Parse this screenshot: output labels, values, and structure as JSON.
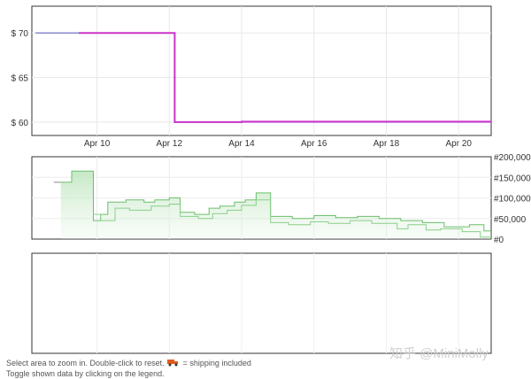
{
  "chart_data": [
    {
      "type": "line",
      "y_tick_labels": [
        "$ 70",
        "$ 65",
        "$ 60"
      ],
      "x_tick_labels": [
        "Apr 10",
        "Apr 12",
        "Apr 14",
        "Apr 16",
        "Apr 18",
        "Apr 20"
      ],
      "xlim": [
        8.2,
        20.9
      ],
      "ylim": [
        58.5,
        73.0
      ],
      "grid": true,
      "colors": {
        "amazon": "#8888cc",
        "new": "#cc33cc"
      },
      "series": [
        {
          "points": [
            [
              8.3,
              70
            ],
            [
              12.15,
              70
            ],
            [
              12.15,
              60
            ],
            [
              20.9,
              60
            ]
          ]
        },
        {
          "points": [
            [
              9.5,
              70
            ],
            [
              12.15,
              70
            ],
            [
              12.15,
              60
            ],
            [
              14.0,
              60
            ],
            [
              14.0,
              60.05
            ],
            [
              20.9,
              60.05
            ]
          ]
        }
      ]
    },
    {
      "type": "area",
      "y_tick_labels": [
        "#200,000",
        "#150,000",
        "#100,000",
        "#50,000",
        "#0"
      ],
      "ylim": [
        0,
        200000
      ],
      "xlim": [
        8.2,
        20.9
      ],
      "grid": true,
      "colors": {
        "line": "#6cbf6c",
        "fill": "#dff2df"
      },
      "series": [
        {
          "points": [
            [
              9.0,
              138000
            ],
            [
              9.3,
              138000
            ],
            [
              9.3,
              165000
            ],
            [
              9.9,
              165000
            ],
            [
              9.9,
              45000
            ],
            [
              10.1,
              45000
            ],
            [
              10.1,
              60000
            ],
            [
              10.3,
              60000
            ],
            [
              10.3,
              90000
            ],
            [
              10.8,
              90000
            ],
            [
              10.8,
              95000
            ],
            [
              11.3,
              95000
            ],
            [
              11.3,
              90000
            ],
            [
              11.6,
              90000
            ],
            [
              11.6,
              95000
            ],
            [
              12.0,
              95000
            ],
            [
              12.0,
              100000
            ],
            [
              12.3,
              100000
            ],
            [
              12.3,
              65000
            ],
            [
              12.7,
              65000
            ],
            [
              12.7,
              60000
            ],
            [
              13.1,
              60000
            ],
            [
              13.1,
              75000
            ],
            [
              13.4,
              75000
            ],
            [
              13.4,
              80000
            ],
            [
              13.8,
              80000
            ],
            [
              13.8,
              90000
            ],
            [
              14.1,
              90000
            ],
            [
              14.1,
              95000
            ],
            [
              14.4,
              95000
            ],
            [
              14.4,
              112000
            ],
            [
              14.8,
              112000
            ],
            [
              14.8,
              55000
            ],
            [
              15.4,
              55000
            ],
            [
              15.4,
              50000
            ],
            [
              16.0,
              50000
            ],
            [
              16.0,
              57000
            ],
            [
              16.6,
              57000
            ],
            [
              16.6,
              52000
            ],
            [
              17.2,
              52000
            ],
            [
              17.2,
              55000
            ],
            [
              17.8,
              55000
            ],
            [
              17.8,
              50000
            ],
            [
              18.4,
              50000
            ],
            [
              18.4,
              45000
            ],
            [
              19.0,
              45000
            ],
            [
              19.0,
              40000
            ],
            [
              19.6,
              40000
            ],
            [
              19.6,
              30000
            ],
            [
              20.3,
              30000
            ],
            [
              20.3,
              35000
            ],
            [
              20.7,
              35000
            ],
            [
              20.7,
              20000
            ],
            [
              20.9,
              20000
            ]
          ]
        },
        {
          "points": [
            [
              9.9,
              60000
            ],
            [
              10.1,
              60000
            ],
            [
              10.1,
              45000
            ],
            [
              10.5,
              45000
            ],
            [
              10.5,
              75000
            ],
            [
              10.9,
              75000
            ],
            [
              10.9,
              70000
            ],
            [
              11.5,
              70000
            ],
            [
              11.5,
              80000
            ],
            [
              12.0,
              80000
            ],
            [
              12.0,
              85000
            ],
            [
              12.3,
              85000
            ],
            [
              12.3,
              55000
            ],
            [
              12.8,
              55000
            ],
            [
              12.8,
              50000
            ],
            [
              13.2,
              50000
            ],
            [
              13.2,
              62000
            ],
            [
              13.6,
              62000
            ],
            [
              13.6,
              70000
            ],
            [
              14.0,
              70000
            ],
            [
              14.0,
              82000
            ],
            [
              14.4,
              82000
            ],
            [
              14.4,
              95000
            ],
            [
              14.8,
              95000
            ],
            [
              14.8,
              40000
            ],
            [
              15.3,
              40000
            ],
            [
              15.3,
              35000
            ],
            [
              15.9,
              35000
            ],
            [
              15.9,
              42000
            ],
            [
              16.4,
              42000
            ],
            [
              16.4,
              38000
            ],
            [
              17.0,
              38000
            ],
            [
              17.0,
              45000
            ],
            [
              17.6,
              45000
            ],
            [
              17.6,
              38000
            ],
            [
              18.3,
              38000
            ],
            [
              18.3,
              25000
            ],
            [
              18.6,
              25000
            ],
            [
              18.6,
              35000
            ],
            [
              19.1,
              35000
            ],
            [
              19.1,
              22000
            ],
            [
              19.5,
              22000
            ],
            [
              19.5,
              25000
            ],
            [
              20.1,
              25000
            ],
            [
              20.1,
              18000
            ],
            [
              20.6,
              18000
            ],
            [
              20.6,
              5000
            ],
            [
              20.9,
              5000
            ]
          ]
        }
      ]
    },
    {
      "type": "line",
      "xlim": [
        8.2,
        20.9
      ],
      "grid": true,
      "series": []
    }
  ],
  "footnote": {
    "line1_a": "Select area to zoom in. Double-click to reset.",
    "line1_b": "= shipping included",
    "line2": "Toggle shown data by clicking on the legend."
  },
  "watermark": "知乎 @MiniMolly"
}
